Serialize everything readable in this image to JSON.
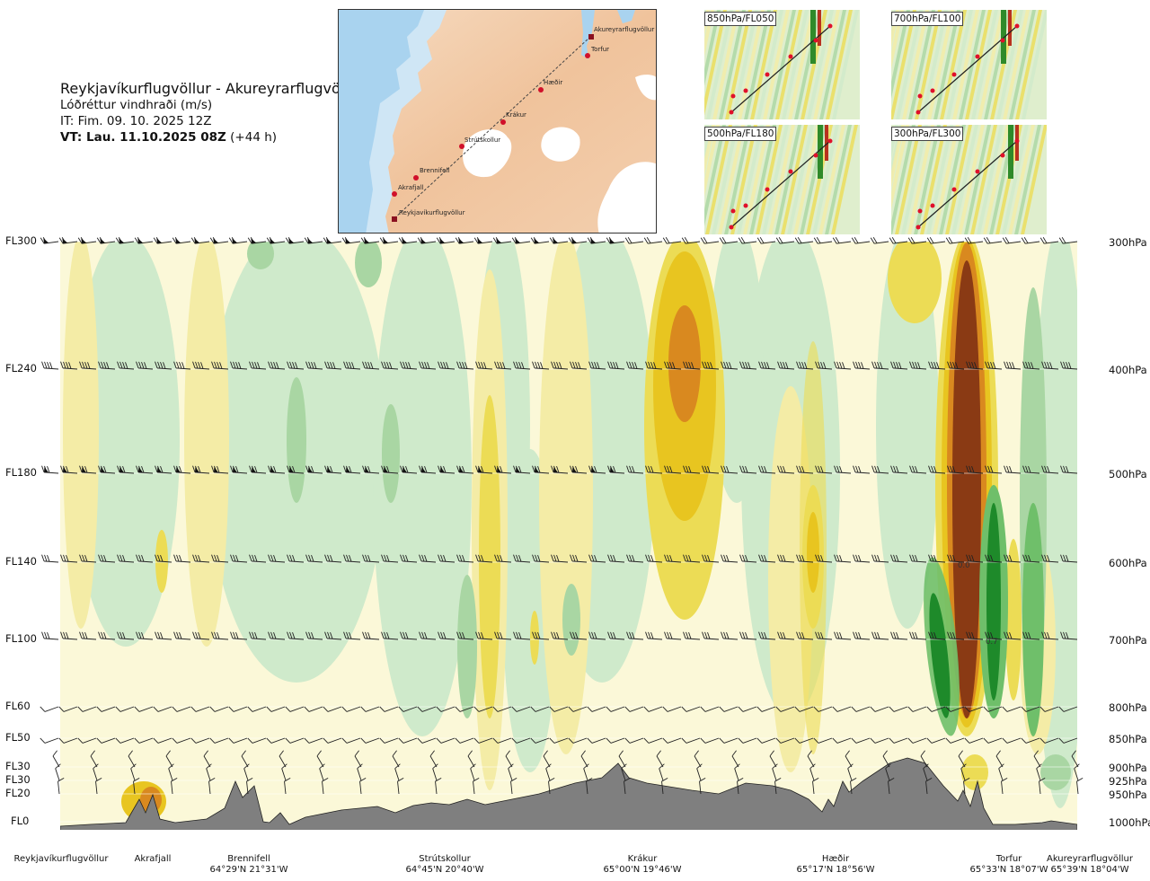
{
  "header": {
    "title": "Reykjavíkurflugvöllur - Akureyrarflugvöllur",
    "variable": "Lóðréttur vindhraði (m/s)",
    "issue": "IT: Fim. 09. 10. 2025 12Z",
    "valid_bold": "VT: Lau. 11.10.2025 08Z",
    "valid_lead": "(+44 h)"
  },
  "map": {
    "waypoints": [
      "Akureyrarflugvöllur",
      "Torfur",
      "Hæðir",
      "Krákur",
      "Strútskollur",
      "Brennifell",
      "Akrafjall",
      "Reykjavíkurflugvöllur"
    ]
  },
  "thumbnails": [
    {
      "label": "850hPa/FL050"
    },
    {
      "label": "700hPa/FL100"
    },
    {
      "label": "500hPa/FL180"
    },
    {
      "label": "300hPa/FL300"
    }
  ],
  "levels": [
    {
      "fl": "FL300",
      "p": "300hPa"
    },
    {
      "fl": "FL240",
      "p": "400hPa"
    },
    {
      "fl": "FL180",
      "p": "500hPa"
    },
    {
      "fl": "FL140",
      "p": "600hPa"
    },
    {
      "fl": "FL100",
      "p": "700hPa"
    },
    {
      "fl": "FL60",
      "p": "800hPa"
    },
    {
      "fl": "FL50",
      "p": "850hPa"
    },
    {
      "fl": "FL30",
      "p": "900hPa"
    },
    {
      "fl": "FL30",
      "p": "925hPa"
    },
    {
      "fl": "FL20",
      "p": "950hPa"
    },
    {
      "fl": "FL0",
      "p": "1000hPa"
    }
  ],
  "stations": [
    {
      "name": "Reykjavíkurflugvöllur",
      "coord": ""
    },
    {
      "name": "Akrafjall",
      "coord": ""
    },
    {
      "name": "Brennifell",
      "coord": "64°29'N 21°31'W"
    },
    {
      "name": "Strútskollur",
      "coord": "64°45'N 20°40'W"
    },
    {
      "name": "Krákur",
      "coord": "65°00'N 19°46'W"
    },
    {
      "name": "Hæðir",
      "coord": "65°17'N 18°56'W"
    },
    {
      "name": "Torfur",
      "coord": "65°33'N 18°07'W"
    },
    {
      "name": "Akureyrarflugvöllur",
      "coord": "65°39'N 18°04'W"
    }
  ],
  "chart_data": {
    "type": "heatmap",
    "title": "Reykjavíkurflugvöllur - Akureyrarflugvöllur",
    "zlabel": "Lóðréttur vindhraði (m/s)",
    "yaxis_left": [
      "FL300",
      "FL240",
      "FL180",
      "FL140",
      "FL100",
      "FL60",
      "FL50",
      "FL30",
      "FL30",
      "FL20",
      "FL0"
    ],
    "yaxis_right": [
      "300hPa",
      "400hPa",
      "500hPa",
      "600hPa",
      "700hPa",
      "800hPa",
      "850hPa",
      "900hPa",
      "925hPa",
      "950hPa",
      "1000hPa"
    ],
    "xaxis": [
      "Reykjavíkurflugvöllur",
      "Akrafjall",
      "Brennifell",
      "Strútskollur",
      "Krákur",
      "Hæðir",
      "Torfur",
      "Akureyrarflugvöllur"
    ],
    "contour_labels": [
      "0.0",
      "0.7"
    ],
    "colors": {
      "strong_down": "#1e8a2a",
      "down": "#6fbf6a",
      "weak_down": "#a9d6a3",
      "slight_down": "#cfeacb",
      "neutral": "#fbf8d8",
      "slight_up": "#f4eca6",
      "up": "#ecdc55",
      "moderate_up": "#e8c520",
      "strong_up": "#d9891f",
      "very_strong_up": "#8a3a14",
      "terrain": "#7f7f7f"
    }
  }
}
